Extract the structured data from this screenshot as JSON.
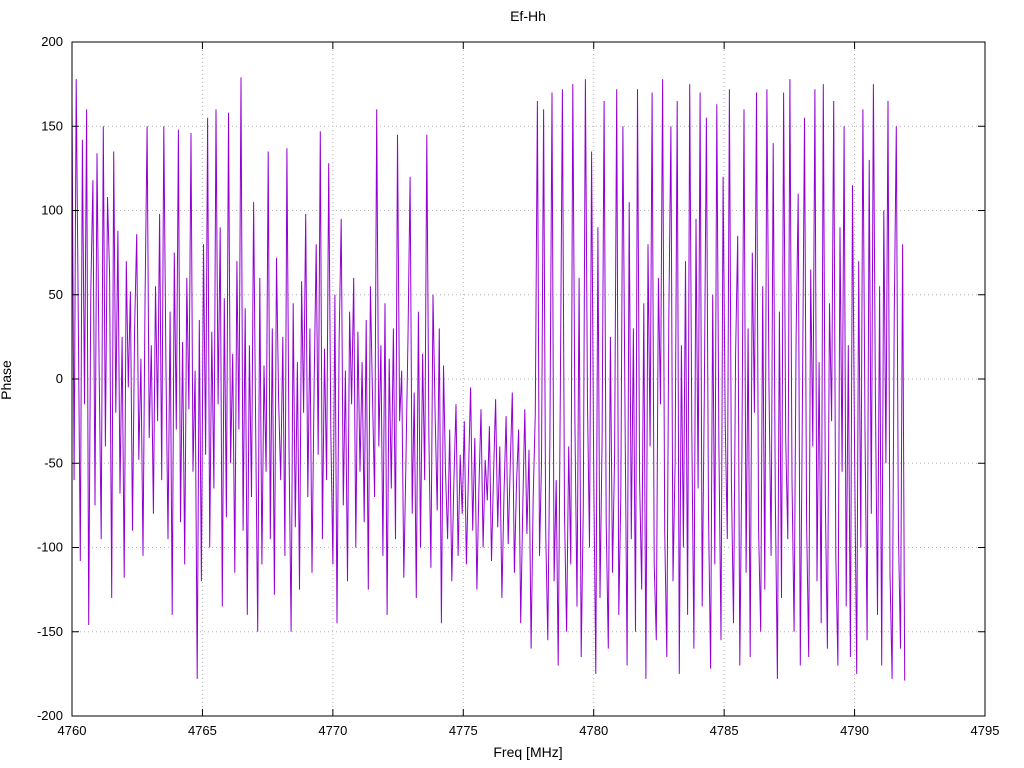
{
  "window": {
    "background": "#ffffff"
  },
  "chart_data": {
    "type": "line",
    "title": "Ef-Hh",
    "xlabel": "Freq [MHz]",
    "ylabel": "Phase",
    "xlim": [
      4760,
      4795
    ],
    "ylim": [
      -200,
      200
    ],
    "grid": "dotted",
    "line_color": "#9400d3",
    "grid_color": "#b5b5b5",
    "border_color": "#000000",
    "xticks": [
      4760,
      4765,
      4770,
      4775,
      4780,
      4785,
      4790,
      4795
    ],
    "xtick_labels": [
      "4760",
      "4765",
      "4770",
      "4775",
      "4780",
      "4785",
      "4790",
      "4795"
    ],
    "yticks": [
      -200,
      -150,
      -100,
      -50,
      0,
      50,
      100,
      150,
      200
    ],
    "ytick_labels": [
      "-200",
      "-150",
      "-100",
      "-50",
      "0",
      "50",
      "100",
      "150",
      "200"
    ],
    "x_start": 4760.0,
    "x_step": 0.08,
    "phase_values": [
      165,
      -60,
      178,
      35,
      -108,
      142,
      -15,
      160,
      -146,
      52,
      118,
      -75,
      134,
      8,
      -95,
      150,
      -40,
      108,
      62,
      -130,
      135,
      -20,
      88,
      -68,
      25,
      -118,
      70,
      -5,
      52,
      -90,
      30,
      86,
      -48,
      12,
      -105,
      45,
      150,
      -35,
      20,
      -80,
      55,
      -25,
      98,
      -60,
      150,
      10,
      -95,
      40,
      -140,
      75,
      -30,
      148,
      -85,
      22,
      -110,
      60,
      -18,
      146,
      -55,
      5,
      -178,
      35,
      -120,
      80,
      -45,
      155,
      -100,
      28,
      -65,
      160,
      -15,
      90,
      -135,
      48,
      -82,
      158,
      -50,
      15,
      -115,
      70,
      -30,
      179,
      -90,
      42,
      -140,
      20,
      -70,
      105,
      -25,
      -150,
      60,
      -110,
      8,
      -55,
      135,
      -95,
      30,
      -128,
      72,
      -12,
      -60,
      25,
      -105,
      137,
      -40,
      -150,
      45,
      -88,
      10,
      -125,
      58,
      -20,
      98,
      -70,
      30,
      -115,
      -5,
      80,
      -45,
      147,
      -95,
      18,
      -60,
      128,
      -30,
      -110,
      50,
      -145,
      22,
      95,
      -75,
      5,
      -120,
      40,
      -15,
      60,
      -100,
      28,
      -55,
      10,
      -85,
      35,
      -125,
      55,
      -10,
      -70,
      160,
      -40,
      20,
      -105,
      45,
      -140,
      12,
      -65,
      30,
      -95,
      145,
      -25,
      5,
      -118,
      -50,
      25,
      120,
      -80,
      -8,
      -130,
      40,
      -100,
      15,
      -60,
      145,
      -35,
      -112,
      50,
      -20,
      -78,
      30,
      -145,
      8,
      -55,
      -95,
      -30,
      -120,
      -60,
      -15,
      -105,
      -45,
      -80,
      -25,
      -110,
      -55,
      -5,
      -90,
      -35,
      -125,
      -65,
      -18,
      -100,
      -48,
      -72,
      -28,
      -108,
      -58,
      -12,
      -88,
      -40,
      -130,
      -68,
      -22,
      -98,
      -52,
      -8,
      -115,
      -62,
      -30,
      -145,
      -75,
      -18,
      -92,
      -42,
      -160,
      -70,
      -20,
      165,
      -105,
      -50,
      160,
      -90,
      -155,
      -35,
      170,
      -120,
      -60,
      -170,
      -10,
      172,
      -80,
      -150,
      -40,
      -110,
      175,
      -25,
      -135,
      60,
      -165,
      -75,
      178,
      -15,
      -100,
      135,
      -55,
      -175,
      90,
      -130,
      -35,
      165,
      -85,
      -160,
      25,
      -115,
      -45,
      172,
      -140,
      -70,
      150,
      -20,
      -170,
      105,
      -95,
      30,
      -150,
      172,
      -60,
      -125,
      45,
      -178,
      80,
      -40,
      170,
      -110,
      -155,
      60,
      -15,
      178,
      -90,
      -165,
      35,
      150,
      -120,
      -50,
      165,
      -175,
      20,
      -100,
      70,
      -140,
      175,
      -30,
      -160,
      95,
      -65,
      170,
      -135,
      -10,
      155,
      -80,
      -172,
      50,
      -110,
      163,
      -40,
      -155,
      120,
      -25,
      -95,
      172,
      -60,
      -145,
      15,
      85,
      -170,
      -45,
      160,
      -115,
      30,
      -165,
      75,
      -20,
      170,
      -90,
      -150,
      55,
      -125,
      172,
      -5,
      -105,
      140,
      -70,
      -178,
      40,
      -130,
      170,
      -35,
      -95,
      178,
      -60,
      -150,
      25,
      110,
      -170,
      -15,
      155,
      -85,
      -165,
      65,
      -40,
      172,
      -120,
      10,
      -145,
      175,
      -75,
      -160,
      45,
      -25,
      165,
      -105,
      -170,
      90,
      -55,
      150,
      -135,
      20,
      -165,
      115,
      -45,
      -175,
      70,
      -100,
      160,
      -30,
      -155,
      130,
      -80,
      175,
      -10,
      -140,
      55,
      -170,
      100,
      -50,
      165,
      -115,
      -178,
      35,
      150,
      -90,
      -160,
      80,
      -179
    ]
  }
}
